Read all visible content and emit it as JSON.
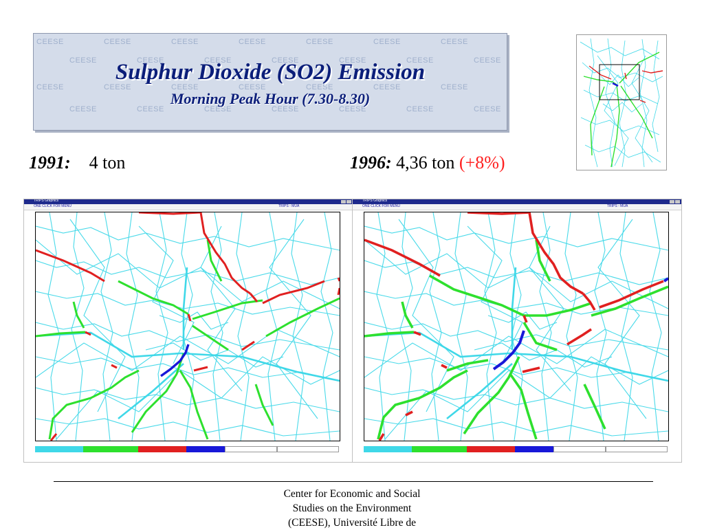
{
  "title": {
    "main": "Sulphur Dioxide (SO2) Emission",
    "sub": "Morning Peak Hour (7.30-8.30)",
    "watermark": "CEESE"
  },
  "comparison": {
    "left": {
      "year": "1991:",
      "value": "4 ton"
    },
    "right": {
      "year": "1996:",
      "value": "4,36 ton",
      "change": "(+8%)"
    }
  },
  "colors": {
    "title_text": "#0b1e7a",
    "title_bg": "#d4dcea",
    "change_text": "#ff2020",
    "road_base": "#3fd8e8",
    "road_low": "#2ee02e",
    "road_mid": "#e02020",
    "road_high": "#1818d8"
  },
  "maps": [
    {
      "window_title": "TRIPS Graphics",
      "menu_left": "ONE CLICK FOR MENU",
      "menu_right": "TRIPS - MUA"
    },
    {
      "window_title": "TRIPS Graphics",
      "menu_left": "ONE CLICK FOR MENU",
      "menu_right": "TRIPS - MUA"
    }
  ],
  "icons": {
    "window_controls": "window-control-icon",
    "overview": "network-overview-map"
  },
  "footer": {
    "line1": "Center for Economic and Social",
    "line2": "Studies on the Environment",
    "line3": "(CEESE), Université Libre de"
  }
}
